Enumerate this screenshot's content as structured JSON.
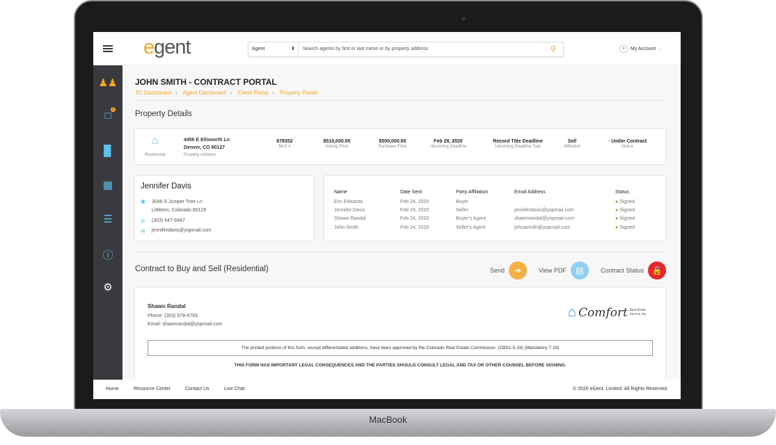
{
  "device": {
    "brand": "MacBook"
  },
  "header": {
    "logo": "egent",
    "search_type": "Agent",
    "search_placeholder": "Search agents by first or last name or by property address",
    "account_label": "My Account"
  },
  "sidebar": {
    "items": [
      {
        "icon": "users-icon"
      },
      {
        "icon": "chat-icon",
        "badge": "1"
      },
      {
        "icon": "bar-chart-icon"
      },
      {
        "icon": "calendar-icon"
      },
      {
        "icon": "list-icon"
      },
      {
        "icon": "help-icon"
      },
      {
        "icon": "gear-icon"
      }
    ]
  },
  "page": {
    "title": "JOHN SMITH - CONTRACT PORTAL",
    "breadcrumbs": [
      "TC Dashboard",
      "Agent Dashboard",
      "Client Portal",
      "Property Portal"
    ]
  },
  "property": {
    "heading": "Property Details",
    "type": "Residential",
    "address_line1": "4456 E Ellsworth Ln",
    "address_line2": "Denver, CO 80127",
    "address_label": "Property Address",
    "fields": [
      {
        "value": "678352",
        "label": "MLS #"
      },
      {
        "value": "$510,000.00",
        "label": "Asking Price"
      },
      {
        "value": "$500,000.00",
        "label": "Purchase Price"
      },
      {
        "value": "Feb 28, 2020",
        "label": "Upcoming Deadline"
      },
      {
        "value": "Record Title Deadline",
        "label": "Upcoming Deadline Task"
      },
      {
        "value": "Sell",
        "label": "Affiliation"
      },
      {
        "value": "Under Contract",
        "label": "Status"
      }
    ]
  },
  "client": {
    "name": "Jennifer Davis",
    "address1": "3048 S Juniper Tree Ln",
    "address2": "Littleton, Colorado 80129",
    "phone": "(303) 647-6647",
    "email": "jenniferdavis@yopmail.com"
  },
  "parties": {
    "headers": [
      "Name",
      "Date Sent",
      "Party Affiliation",
      "Email Address",
      "Status"
    ],
    "rows": [
      [
        "Eric Edwards",
        "Feb 24, 2020",
        "Buyer",
        "",
        "Signed"
      ],
      [
        "Jennifer Davis",
        "Feb 24, 2020",
        "Seller",
        "jenniferdavis@yopmail.com",
        "Signed"
      ],
      [
        "Shawn Randal",
        "Feb 24, 2020",
        "Buyer's Agent",
        "shawnrandal@yopmail.com",
        "Signed"
      ],
      [
        "John Smith",
        "Feb 24, 2020",
        "Seller's Agent",
        "johnasmith@yopmail.com",
        "Signed"
      ]
    ]
  },
  "contract": {
    "heading": "Contract to Buy and Sell (Residential)",
    "send": "Send",
    "view_pdf": "View PDF",
    "status": "Contract Status",
    "agent_name": "Shawn Randal",
    "agent_phone": "Phone: (303) 678-6783",
    "agent_email": "Email: shawnrandal@yopmail.com",
    "company_logo": "Comfort",
    "company_sub": "Real Estate Service, Inc",
    "notice": "The printed portions of this form, except differentiated additions, have been approved by the Colorado Real Estate Commission. (CBS1-5-19) (Mandatory 7-19)",
    "warning": "THIS FORM HAS IMPORTANT LEGAL CONSEQUENCES AND THE PARTIES SHOULD CONSULT LEGAL AND TAX OR  OTHER COUNSEL BEFORE SIGNING."
  },
  "footer": {
    "links": [
      "Home",
      "Resource Center",
      "Contact Us",
      "Live Chat"
    ],
    "copyright": "© 2020 eGent, Limited.  All Rights Reserved."
  },
  "colors": {
    "accent": "#f5a623",
    "blue": "#5bc0eb",
    "sidebar": "#3a3a3e",
    "signed": "#5cb82e",
    "lock": "#e8262c"
  }
}
